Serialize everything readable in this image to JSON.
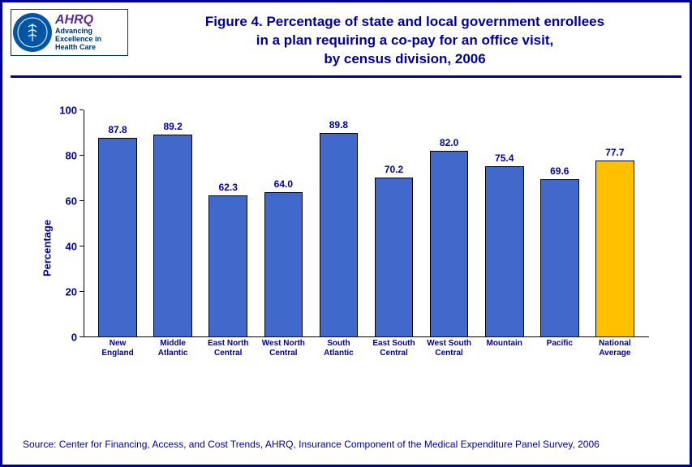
{
  "logo": {
    "ahrq": "AHRQ",
    "tag1": "Advancing",
    "tag2": "Excellence in",
    "tag3": "Health Care"
  },
  "title": {
    "line1": "Figure 4. Percentage of state and local government enrollees",
    "line2": "in a plan requiring a co-pay for an office visit,",
    "line3": "by census division, 2006"
  },
  "chart": {
    "type": "bar",
    "ylabel": "Percentage",
    "ylim": [
      0,
      100
    ],
    "ytick_step": 20,
    "yticks": [
      0,
      20,
      40,
      60,
      80,
      100
    ],
    "bar_default_color": "#4169cc",
    "bar_highlight_color": "#ffc000",
    "bar_border": "#000000",
    "background_color": "#ffffff",
    "title_color": "#000099",
    "axis_text_color": "#000099",
    "categories": [
      {
        "label_lines": [
          "New",
          "England"
        ],
        "value": 87.8,
        "highlight": false
      },
      {
        "label_lines": [
          "Middle",
          "Atlantic"
        ],
        "value": 89.2,
        "highlight": false
      },
      {
        "label_lines": [
          "East North",
          "Central"
        ],
        "value": 62.3,
        "highlight": false
      },
      {
        "label_lines": [
          "West North",
          "Central"
        ],
        "value": 64.0,
        "highlight": false
      },
      {
        "label_lines": [
          "South",
          "Atlantic"
        ],
        "value": 89.8,
        "highlight": false
      },
      {
        "label_lines": [
          "East South",
          "Central"
        ],
        "value": 70.2,
        "highlight": false
      },
      {
        "label_lines": [
          "West South",
          "Central"
        ],
        "value": 82.0,
        "highlight": false
      },
      {
        "label_lines": [
          "Mountain"
        ],
        "value": 75.4,
        "highlight": false
      },
      {
        "label_lines": [
          "Pacific"
        ],
        "value": 69.6,
        "highlight": false
      },
      {
        "label_lines": [
          "National",
          "Average"
        ],
        "value": 77.7,
        "highlight": true
      }
    ]
  },
  "source": "Source: Center for Financing, Access, and Cost Trends, AHRQ, Insurance Component of the Medical Expenditure Panel Survey, 2006"
}
